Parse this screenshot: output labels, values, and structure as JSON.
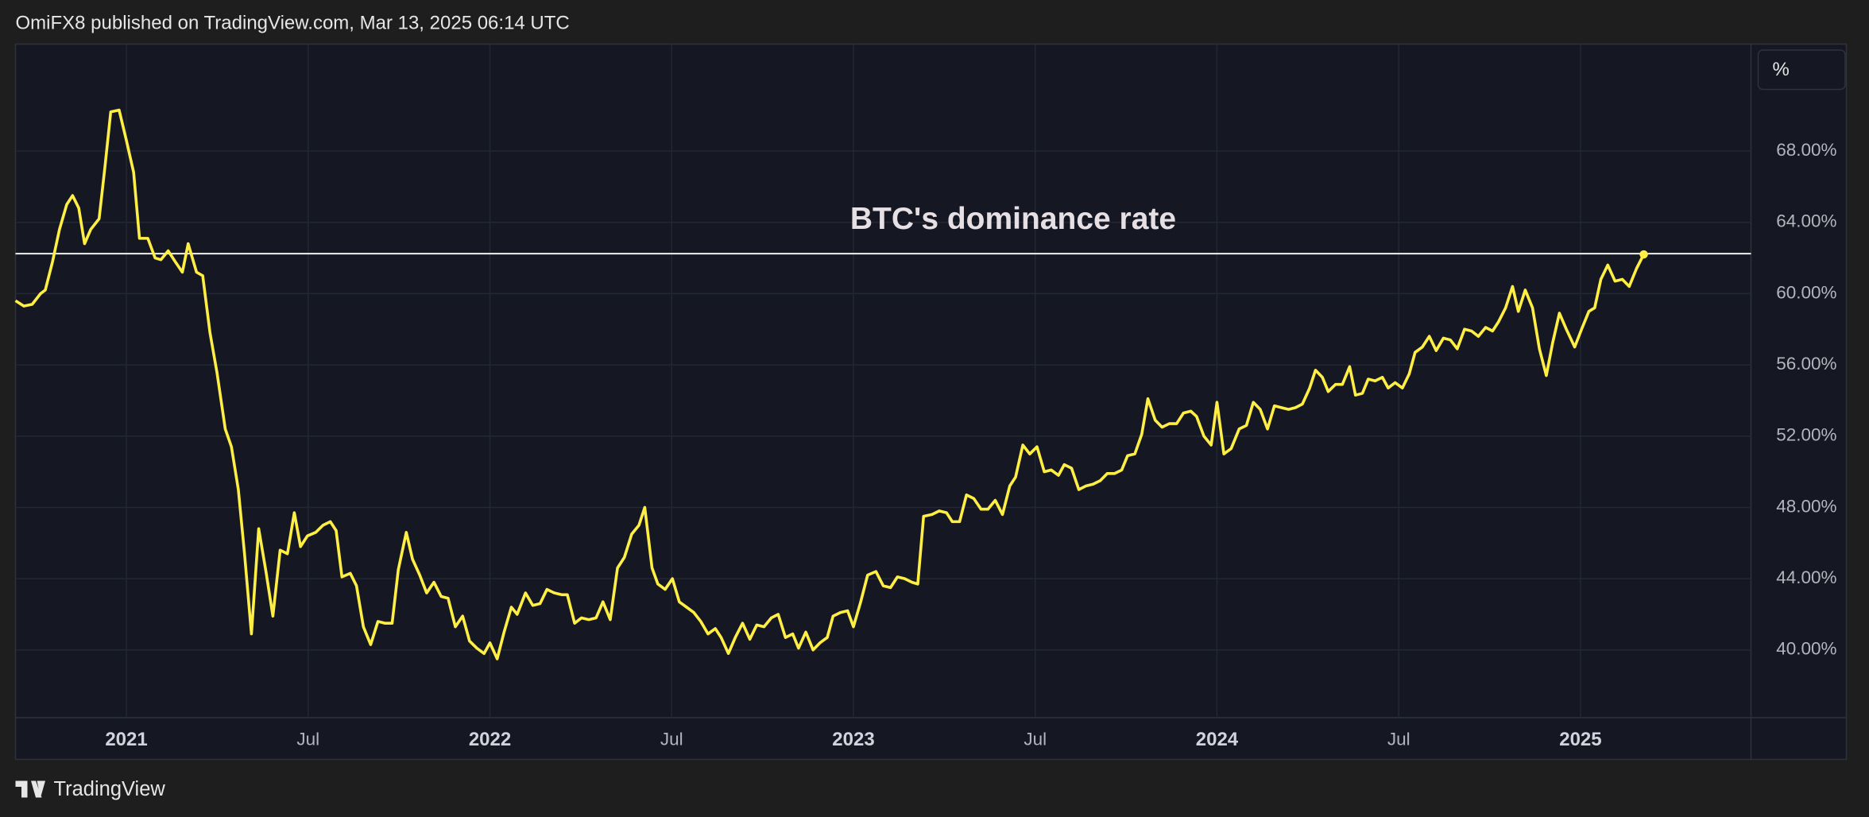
{
  "header": "OmiFX8 published on TradingView.com, Mar 13, 2025 06:14 UTC",
  "footer": "TradingView",
  "unit_button": "%",
  "chart_data": {
    "type": "line",
    "annotation": "BTC's dominance rate",
    "reference_line": 62.24,
    "color": "#ffee44",
    "grid": true,
    "xlim": [
      2020.695,
      2025.469
    ],
    "ylim": [
      36.2,
      74.0
    ],
    "xticks": [
      2021,
      {
        "value": 2021.5,
        "label": "Jul"
      },
      2022,
      {
        "value": 2022.5,
        "label": "Jul"
      },
      2023,
      {
        "value": 2023.5,
        "label": "Jul"
      },
      2024,
      {
        "value": 2024.5,
        "label": "Jul"
      },
      2025
    ],
    "yticks": [
      {
        "value": 40,
        "label": "40.00%"
      },
      {
        "value": 44,
        "label": "44.00%"
      },
      {
        "value": 48,
        "label": "48.00%"
      },
      {
        "value": 52,
        "label": "52.00%"
      },
      {
        "value": 56,
        "label": "56.00%"
      },
      {
        "value": 60,
        "label": "60.00%"
      },
      {
        "value": 64,
        "label": "64.00%"
      },
      {
        "value": 68,
        "label": "68.00%"
      }
    ],
    "x": [
      2020.695,
      2020.718,
      2020.741,
      2020.764,
      2020.777,
      2020.797,
      2020.816,
      2020.836,
      2020.852,
      2020.869,
      2020.885,
      2020.902,
      2020.925,
      2020.941,
      2020.957,
      2020.98,
      2021.0,
      2021.02,
      2021.036,
      2021.059,
      2021.079,
      2021.095,
      2021.115,
      2021.134,
      2021.154,
      2021.17,
      2021.193,
      2021.21,
      2021.23,
      2021.249,
      2021.272,
      2021.289,
      2021.308,
      2021.325,
      2021.344,
      2021.364,
      2021.384,
      2021.403,
      2021.423,
      2021.443,
      2021.462,
      2021.479,
      2021.498,
      2021.521,
      2021.541,
      2021.561,
      2021.577,
      2021.593,
      2021.616,
      2021.633,
      2021.652,
      2021.672,
      2021.692,
      2021.711,
      2021.731,
      2021.748,
      2021.77,
      2021.787,
      2021.807,
      2021.826,
      2021.846,
      2021.866,
      2021.885,
      2021.905,
      2021.925,
      2021.944,
      2021.964,
      2021.984,
      2022.0,
      2022.02,
      2022.039,
      2022.059,
      2022.075,
      2022.098,
      2022.118,
      2022.138,
      2022.157,
      2022.177,
      2022.197,
      2022.213,
      2022.233,
      2022.252,
      2022.272,
      2022.292,
      2022.311,
      2022.331,
      2022.351,
      2022.37,
      2022.39,
      2022.41,
      2022.426,
      2022.446,
      2022.462,
      2022.482,
      2022.502,
      2022.521,
      2022.541,
      2022.561,
      2022.58,
      2022.6,
      2022.62,
      2022.636,
      2022.656,
      2022.675,
      2022.695,
      2022.715,
      2022.734,
      2022.754,
      2022.774,
      2022.793,
      2022.813,
      2022.833,
      2022.849,
      2022.869,
      2022.889,
      2022.908,
      2022.928,
      2022.944,
      2022.964,
      2022.984,
      2023.0,
      2023.02,
      2023.039,
      2023.062,
      2023.082,
      2023.102,
      2023.121,
      2023.141,
      2023.161,
      2023.177,
      2023.193,
      2023.216,
      2023.236,
      2023.256,
      2023.272,
      2023.292,
      2023.311,
      2023.331,
      2023.351,
      2023.37,
      2023.39,
      2023.41,
      2023.43,
      2023.446,
      2023.466,
      2023.485,
      2023.505,
      2023.525,
      2023.544,
      2023.564,
      2023.58,
      2023.6,
      2023.62,
      2023.639,
      2023.659,
      2023.679,
      2023.698,
      2023.718,
      2023.738,
      2023.754,
      2023.774,
      2023.793,
      2023.81,
      2023.83,
      2023.849,
      2023.869,
      2023.889,
      2023.908,
      2023.928,
      2023.944,
      2023.964,
      2023.984,
      2024.0,
      2024.019,
      2024.039,
      2024.061,
      2024.081,
      2024.1,
      2024.119,
      2024.139,
      2024.158,
      2024.177,
      2024.197,
      2024.216,
      2024.235,
      2024.255,
      2024.271,
      2024.29,
      2024.306,
      2024.326,
      2024.345,
      2024.365,
      2024.381,
      2024.4,
      2024.416,
      2024.435,
      2024.455,
      2024.471,
      2024.49,
      2024.51,
      2024.529,
      2024.545,
      2024.565,
      2024.584,
      2024.603,
      2024.623,
      2024.642,
      2024.661,
      2024.681,
      2024.7,
      2024.719,
      2024.739,
      2024.758,
      2024.774,
      2024.794,
      2024.813,
      2024.829,
      2024.848,
      2024.868,
      2024.887,
      2024.906,
      2024.923,
      2024.942,
      2024.961,
      2024.984,
      2025.003,
      2025.023,
      2025.039,
      2025.056,
      2025.075,
      2025.095,
      2025.115,
      2025.134,
      2025.154,
      2025.174
    ],
    "values": [
      59.6,
      59.3,
      59.4,
      60.0,
      60.2,
      61.8,
      63.6,
      65.0,
      65.5,
      64.8,
      62.8,
      63.6,
      64.2,
      67.1,
      70.2,
      70.3,
      68.6,
      66.8,
      63.1,
      63.1,
      62.0,
      61.9,
      62.4,
      61.8,
      61.2,
      62.8,
      61.2,
      61.0,
      57.8,
      55.6,
      52.4,
      51.4,
      49.0,
      45.4,
      40.9,
      46.8,
      44.4,
      41.9,
      45.6,
      45.4,
      47.7,
      45.8,
      46.4,
      46.6,
      47.0,
      47.2,
      46.7,
      44.1,
      44.3,
      43.6,
      41.3,
      40.3,
      41.6,
      41.5,
      41.5,
      44.5,
      46.6,
      45.1,
      44.2,
      43.2,
      43.8,
      43.0,
      42.9,
      41.3,
      41.9,
      40.5,
      40.1,
      39.8,
      40.4,
      39.5,
      41.0,
      42.4,
      42.0,
      43.2,
      42.5,
      42.6,
      43.4,
      43.2,
      43.1,
      43.1,
      41.5,
      41.8,
      41.7,
      41.8,
      42.7,
      41.7,
      44.6,
      45.2,
      46.5,
      47.0,
      48.0,
      44.6,
      43.7,
      43.4,
      44.0,
      42.7,
      42.4,
      42.1,
      41.6,
      40.9,
      41.2,
      40.7,
      39.8,
      40.7,
      41.5,
      40.6,
      41.4,
      41.3,
      41.8,
      42.0,
      40.7,
      40.9,
      40.1,
      41.0,
      40.0,
      40.4,
      40.7,
      41.9,
      42.1,
      42.2,
      41.3,
      42.7,
      44.2,
      44.4,
      43.6,
      43.5,
      44.1,
      44.0,
      43.8,
      43.7,
      47.5,
      47.6,
      47.8,
      47.7,
      47.2,
      47.2,
      48.7,
      48.5,
      47.9,
      47.9,
      48.4,
      47.6,
      49.2,
      49.7,
      51.5,
      51.0,
      51.4,
      50.0,
      50.1,
      49.8,
      50.4,
      50.2,
      49.0,
      49.2,
      49.3,
      49.5,
      49.9,
      49.9,
      50.1,
      50.9,
      51.0,
      52.1,
      54.1,
      52.9,
      52.5,
      52.7,
      52.7,
      53.3,
      53.4,
      53.1,
      52.0,
      51.5,
      53.9,
      51.0,
      51.3,
      52.4,
      52.6,
      53.9,
      53.5,
      52.4,
      53.7,
      53.6,
      53.5,
      53.6,
      53.8,
      54.7,
      55.7,
      55.3,
      54.5,
      54.9,
      54.9,
      55.9,
      54.3,
      54.4,
      55.2,
      55.1,
      55.3,
      54.7,
      55.0,
      54.7,
      55.5,
      56.7,
      57.0,
      57.6,
      56.8,
      57.5,
      57.4,
      56.9,
      58.0,
      57.9,
      57.6,
      58.1,
      57.9,
      58.4,
      59.2,
      60.4,
      59.0,
      60.2,
      59.2,
      56.9,
      55.4,
      57.2,
      58.9,
      58.0,
      57.0,
      58.0,
      59.0,
      59.2,
      60.8,
      61.6,
      60.7,
      60.8,
      60.4,
      61.4,
      62.2
    ]
  }
}
